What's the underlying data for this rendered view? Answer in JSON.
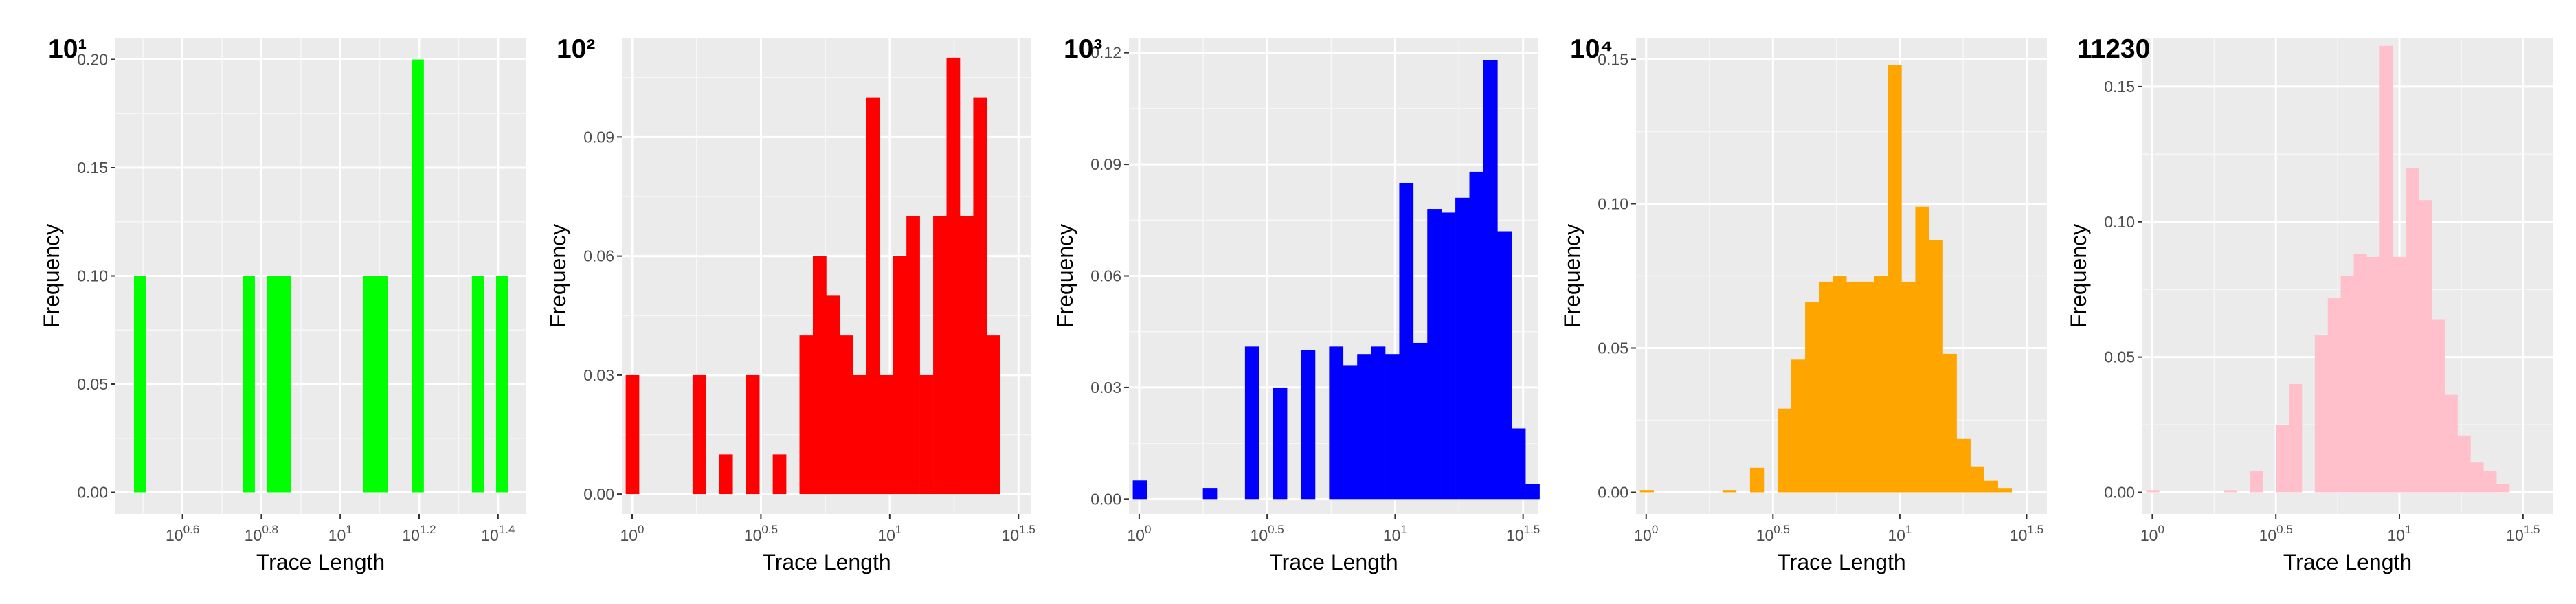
{
  "chart_data": [
    {
      "type": "bar",
      "title": "10¹",
      "xlabel": "Trace Length",
      "ylabel": "Frequency",
      "color": "#00ff00",
      "x_scale": "log10",
      "xlim_exponent": [
        0.43,
        1.47
      ],
      "ylim": [
        -0.01,
        0.21
      ],
      "x_ticks": [
        {
          "exp": 0.6,
          "base": "10",
          "sup": "0.6"
        },
        {
          "exp": 0.8,
          "base": "10",
          "sup": "0.8"
        },
        {
          "exp": 1.0,
          "base": "10",
          "sup": "1"
        },
        {
          "exp": 1.2,
          "base": "10",
          "sup": "1.2"
        },
        {
          "exp": 1.4,
          "base": "10",
          "sup": "1.4"
        }
      ],
      "y_ticks": [
        "0.00",
        "0.05",
        "0.10",
        "0.15",
        "0.20"
      ],
      "y_tick_values": [
        0,
        0.05,
        0.1,
        0.15,
        0.2
      ],
      "bin_start_exp": 0.477,
      "bin_width_exp": 0.0306,
      "values": [
        0.1,
        0,
        0,
        0,
        0,
        0,
        0,
        0,
        0,
        0.1,
        0,
        0.1,
        0.1,
        0,
        0,
        0,
        0,
        0,
        0,
        0.1,
        0.1,
        0,
        0,
        0.2,
        0,
        0,
        0,
        0,
        0.1,
        0,
        0.1
      ]
    },
    {
      "type": "bar",
      "title": "10²",
      "xlabel": "Trace Length",
      "ylabel": "Frequency",
      "color": "#ff0000",
      "x_scale": "log10",
      "xlim_exponent": [
        -0.04,
        1.55
      ],
      "ylim": [
        -0.005,
        0.115
      ],
      "x_ticks": [
        {
          "exp": 0,
          "base": "10",
          "sup": "0"
        },
        {
          "exp": 0.5,
          "base": "10",
          "sup": "0.5"
        },
        {
          "exp": 1,
          "base": "10",
          "sup": "1"
        },
        {
          "exp": 1.5,
          "base": "10",
          "sup": "1.5"
        }
      ],
      "y_ticks": [
        "0.00",
        "0.03",
        "0.06",
        "0.09"
      ],
      "y_tick_values": [
        0,
        0.03,
        0.06,
        0.09
      ],
      "bin_start_exp": -0.025,
      "bin_width_exp": 0.0519,
      "values": [
        0.03,
        0,
        0,
        0,
        0,
        0.03,
        0,
        0.01,
        0,
        0.03,
        0,
        0.01,
        0,
        0.04,
        0.06,
        0.05,
        0.04,
        0.03,
        0.1,
        0.03,
        0.06,
        0.07,
        0.03,
        0.07,
        0.11,
        0.07,
        0.1,
        0.04
      ]
    },
    {
      "type": "bar",
      "title": "10³",
      "xlabel": "Trace Length",
      "ylabel": "Frequency",
      "color": "#0000ff",
      "x_scale": "log10",
      "xlim_exponent": [
        -0.04,
        1.56
      ],
      "ylim": [
        -0.004,
        0.124
      ],
      "x_ticks": [
        {
          "exp": 0,
          "base": "10",
          "sup": "0"
        },
        {
          "exp": 0.5,
          "base": "10",
          "sup": "0.5"
        },
        {
          "exp": 1,
          "base": "10",
          "sup": "1"
        },
        {
          "exp": 1.5,
          "base": "10",
          "sup": "1.5"
        }
      ],
      "y_ticks": [
        "0.00",
        "0.03",
        "0.06",
        "0.09",
        "0.12"
      ],
      "y_tick_values": [
        0,
        0.03,
        0.06,
        0.09,
        0.12
      ],
      "bin_start_exp": -0.025,
      "bin_width_exp": 0.0548,
      "values": [
        0.005,
        0,
        0,
        0,
        0,
        0.003,
        0,
        0,
        0.041,
        0,
        0.03,
        0,
        0.04,
        0,
        0.041,
        0.036,
        0.039,
        0.041,
        0.039,
        0.085,
        0.042,
        0.078,
        0.077,
        0.081,
        0.088,
        0.118,
        0.072,
        0.019,
        0.004
      ]
    },
    {
      "type": "bar",
      "title": "10⁴",
      "xlabel": "Trace Length",
      "ylabel": "Frequency",
      "color": "#ffa500",
      "x_scale": "log10",
      "xlim_exponent": [
        -0.04,
        1.58
      ],
      "ylim": [
        -0.0075,
        0.1575
      ],
      "x_ticks": [
        {
          "exp": 0,
          "base": "10",
          "sup": "0"
        },
        {
          "exp": 0.5,
          "base": "10",
          "sup": "0.5"
        },
        {
          "exp": 1,
          "base": "10",
          "sup": "1"
        },
        {
          "exp": 1.5,
          "base": "10",
          "sup": "1.5"
        }
      ],
      "y_ticks": [
        "0.00",
        "0.05",
        "0.10",
        "0.15"
      ],
      "y_tick_values": [
        0,
        0.05,
        0.1,
        0.15
      ],
      "bin_start_exp": -0.025,
      "bin_width_exp": 0.0543,
      "values": [
        0.0008,
        0,
        0,
        0,
        0,
        0,
        0.0008,
        0,
        0.0085,
        0,
        0.029,
        0.046,
        0.066,
        0.073,
        0.075,
        0.073,
        0.073,
        0.075,
        0.148,
        0.073,
        0.099,
        0.0875,
        0.048,
        0.0185,
        0.009,
        0.004,
        0.0015
      ]
    },
    {
      "type": "bar",
      "title": "11230",
      "xlabel": "Trace Length",
      "ylabel": "Frequency",
      "color": "#ffc0cb",
      "x_scale": "log10",
      "xlim_exponent": [
        -0.04,
        1.62
      ],
      "ylim": [
        -0.008,
        0.168
      ],
      "x_ticks": [
        {
          "exp": 0,
          "base": "10",
          "sup": "0"
        },
        {
          "exp": 0.5,
          "base": "10",
          "sup": "0.5"
        },
        {
          "exp": 1,
          "base": "10",
          "sup": "1"
        },
        {
          "exp": 1.5,
          "base": "10",
          "sup": "1.5"
        }
      ],
      "y_ticks": [
        "0.00",
        "0.05",
        "0.10",
        "0.15"
      ],
      "y_tick_values": [
        0,
        0.05,
        0.1,
        0.15
      ],
      "bin_start_exp": -0.025,
      "bin_width_exp": 0.0525,
      "values": [
        0.0008,
        0,
        0,
        0,
        0,
        0,
        0.0008,
        0,
        0.008,
        0,
        0.025,
        0.04,
        0,
        0.058,
        0.072,
        0.08,
        0.088,
        0.087,
        0.165,
        0.087,
        0.12,
        0.108,
        0.064,
        0.036,
        0.021,
        0.011,
        0.008,
        0.003
      ]
    }
  ]
}
